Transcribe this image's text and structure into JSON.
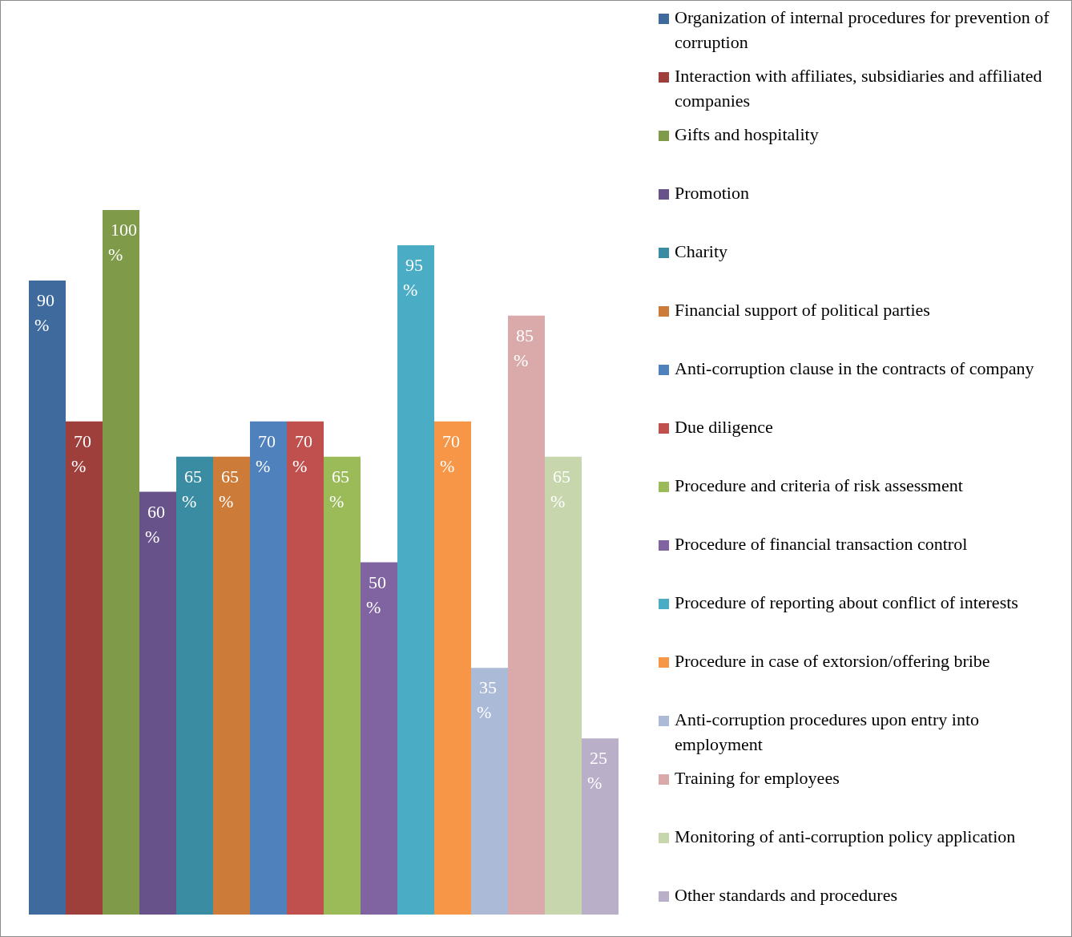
{
  "chart_data": {
    "type": "bar",
    "categories": [
      null
    ],
    "legend": "right",
    "series": [
      {
        "name": "Organization of internal procedures for prevention of corruption",
        "color": "#3f6a9d",
        "values": [
          90
        ],
        "value_labels": [
          "90 %"
        ]
      },
      {
        "name": "Interaction with affiliates, subsidiaries and affiliated companies",
        "color": "#9e3f3c",
        "values": [
          70
        ],
        "value_labels": [
          "70 %"
        ]
      },
      {
        "name": "Gifts and hospitality",
        "color": "#7f9a48",
        "values": [
          100
        ],
        "value_labels": [
          "100 %"
        ]
      },
      {
        "name": "Promotion",
        "color": "#67528a",
        "values": [
          60
        ],
        "value_labels": [
          "60 %"
        ]
      },
      {
        "name": "Charity",
        "color": "#3a8ca3",
        "values": [
          65
        ],
        "value_labels": [
          "65 %"
        ]
      },
      {
        "name": "Financial support of political parties",
        "color": "#cd7b38",
        "values": [
          65
        ],
        "value_labels": [
          "65 %"
        ]
      },
      {
        "name": "Anti-corruption clause in the contracts of company",
        "color": "#4f81bd",
        "values": [
          70
        ],
        "value_labels": [
          "70 %"
        ]
      },
      {
        "name": "Due diligence",
        "color": "#c0504d",
        "values": [
          70
        ],
        "value_labels": [
          "70 %"
        ]
      },
      {
        "name": "Procedure and criteria of risk assessment",
        "color": "#9bbb59",
        "values": [
          65
        ],
        "value_labels": [
          "65 %"
        ]
      },
      {
        "name": "Procedure of financial transaction control",
        "color": "#8064a2",
        "values": [
          50
        ],
        "value_labels": [
          "50 %"
        ]
      },
      {
        "name": "Procedure of reporting about conflict of interests",
        "color": "#4bacc6",
        "values": [
          95
        ],
        "value_labels": [
          "95 %"
        ]
      },
      {
        "name": "Procedure in case of extorsion/offering bribe",
        "color": "#f79646",
        "values": [
          70
        ],
        "value_labels": [
          "70 %"
        ]
      },
      {
        "name": "Anti-corruption procedures upon entry into employment",
        "color": "#aabad7",
        "values": [
          35
        ],
        "value_labels": [
          "35 %"
        ]
      },
      {
        "name": "Training for employees",
        "color": "#d9aaa9",
        "values": [
          85
        ],
        "value_labels": [
          "85 %"
        ]
      },
      {
        "name": "Monitoring of anti-corruption policy application",
        "color": "#c7d6ad",
        "values": [
          65
        ],
        "value_labels": [
          "65 %"
        ]
      },
      {
        "name": "Other standards and procedures",
        "color": "#baafc9",
        "values": [
          25
        ],
        "value_labels": [
          "25 %"
        ]
      }
    ]
  }
}
